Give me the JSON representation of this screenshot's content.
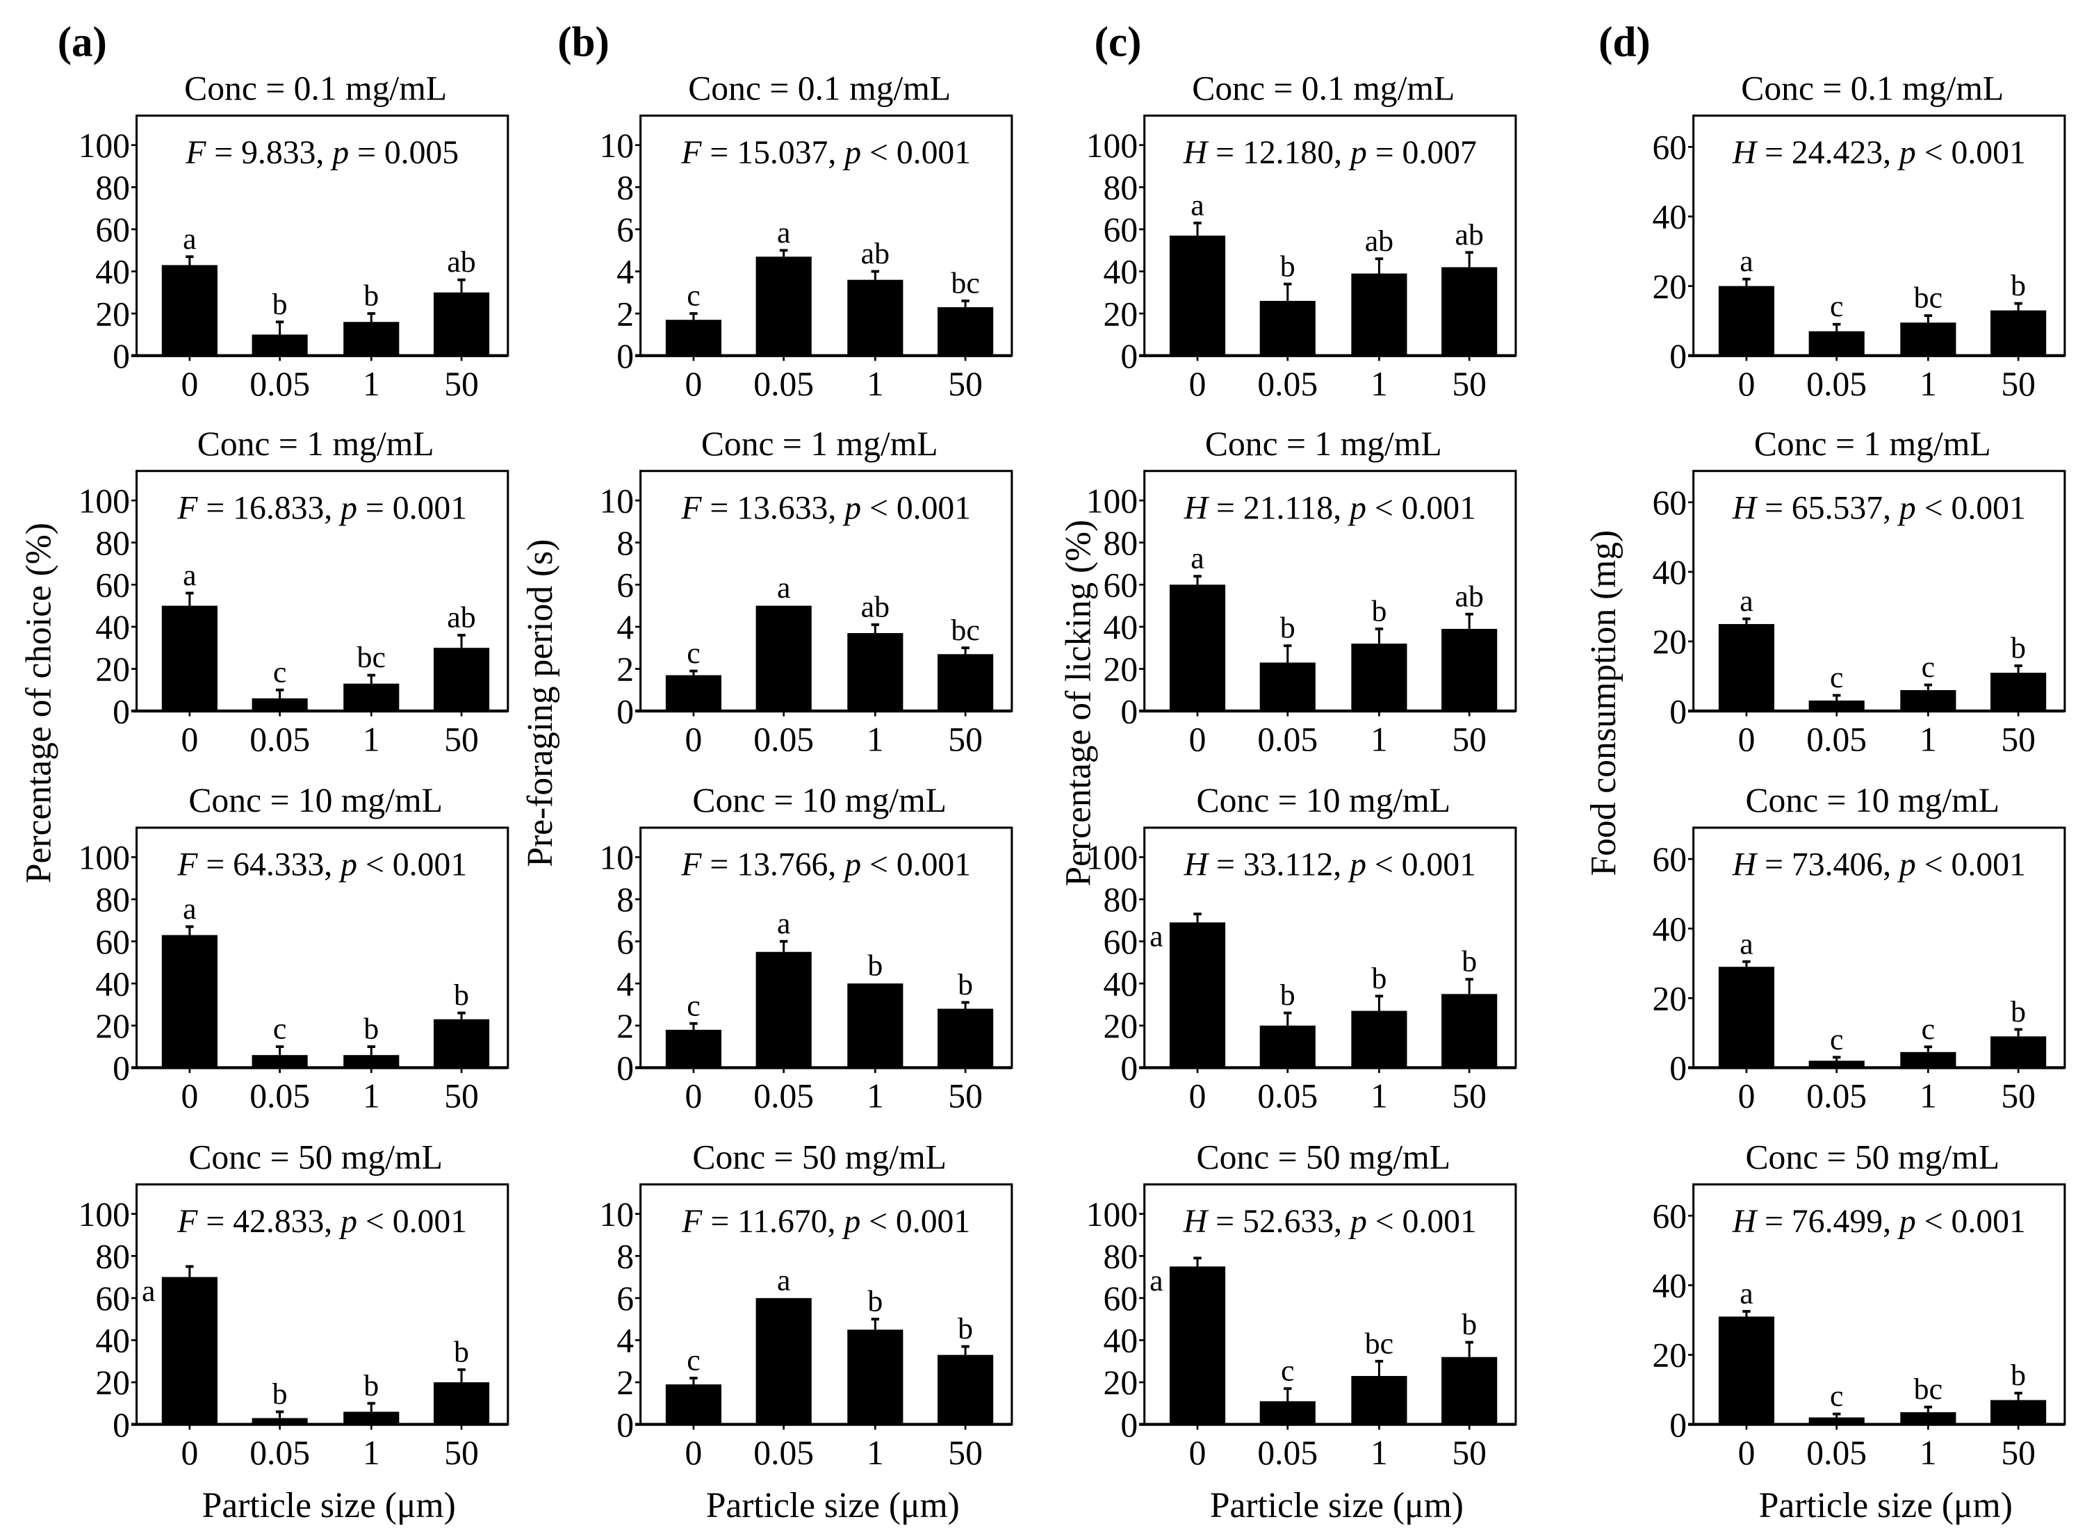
{
  "chart_data": [
    {
      "type": "bar",
      "panel_label": "(a)",
      "ylabel": "Percentage of choice (%)",
      "xlabel": "Particle size (μm)",
      "ylim": [
        0,
        114
      ],
      "yticks": [
        "0",
        "20",
        "40",
        "60",
        "80",
        "100"
      ],
      "ytick_values": [
        0,
        20,
        40,
        60,
        80,
        100
      ],
      "categories": [
        "0",
        "0.05",
        "1",
        "50"
      ],
      "subplots": [
        {
          "title": "Conc = 0.1 mg/mL",
          "stat": {
            "test": "F",
            "value": " = 9.833, ",
            "p": "p",
            "p_text": " = 0.005"
          },
          "values": [
            43,
            10,
            16,
            30
          ],
          "errors": [
            4,
            6,
            4,
            6
          ],
          "letters": [
            "a",
            "b",
            "b",
            "ab"
          ]
        },
        {
          "title": "Conc = 1 mg/mL",
          "stat": {
            "test": "F",
            "value": " = 16.833, ",
            "p": "p",
            "p_text": " = 0.001"
          },
          "values": [
            50,
            6,
            13,
            30
          ],
          "errors": [
            6,
            4,
            4,
            6
          ],
          "letters": [
            "a",
            "c",
            "bc",
            "ab"
          ]
        },
        {
          "title": "Conc = 10 mg/mL",
          "stat": {
            "test": "F",
            "value": " = 64.333, ",
            "p": "p",
            "p_text": " < 0.001"
          },
          "values": [
            63,
            6,
            6,
            23
          ],
          "errors": [
            4,
            4,
            4,
            3
          ],
          "letters": [
            "a",
            "c",
            "b",
            "b"
          ]
        },
        {
          "title": "Conc = 50 mg/mL",
          "stat": {
            "test": "F",
            "value": " = 42.833, ",
            "p": "p",
            "p_text": " < 0.001"
          },
          "values": [
            70,
            3,
            6,
            20
          ],
          "errors": [
            5,
            3,
            4,
            6
          ],
          "letters": [
            "a",
            "b",
            "b",
            "b"
          ]
        }
      ]
    },
    {
      "type": "bar",
      "panel_label": "(b)",
      "ylabel": "Pre-foraging period (s)",
      "xlabel": "Particle size (μm)",
      "ylim": [
        0,
        11.4
      ],
      "yticks": [
        "0",
        "2",
        "4",
        "6",
        "8",
        "10"
      ],
      "ytick_values": [
        0,
        2,
        4,
        6,
        8,
        10
      ],
      "categories": [
        "0",
        "0.05",
        "1",
        "50"
      ],
      "subplots": [
        {
          "title": "Conc = 0.1 mg/mL",
          "stat": {
            "test": "F",
            "value": " = 15.037, ",
            "p": "p",
            "p_text": " < 0.001"
          },
          "values": [
            1.7,
            4.7,
            3.6,
            2.3
          ],
          "errors": [
            0.3,
            0.3,
            0.4,
            0.3
          ],
          "letters": [
            "c",
            "a",
            "ab",
            "bc"
          ]
        },
        {
          "title": "Conc = 1 mg/mL",
          "stat": {
            "test": "F",
            "value": " = 13.633, ",
            "p": "p",
            "p_text": " < 0.001"
          },
          "values": [
            1.7,
            5.0,
            3.7,
            2.7
          ],
          "errors": [
            0.2,
            0.0,
            0.4,
            0.3
          ],
          "letters": [
            "c",
            "a",
            "ab",
            "bc"
          ]
        },
        {
          "title": "Conc = 10 mg/mL",
          "stat": {
            "test": "F",
            "value": " = 13.766, ",
            "p": "p",
            "p_text": " < 0.001"
          },
          "values": [
            1.8,
            5.5,
            4.0,
            2.8
          ],
          "errors": [
            0.3,
            0.5,
            0.0,
            0.3
          ],
          "letters": [
            "c",
            "a",
            "b",
            "b"
          ]
        },
        {
          "title": "Conc = 50 mg/mL",
          "stat": {
            "test": "F",
            "value": " = 11.670, ",
            "p": "p",
            "p_text": " < 0.001"
          },
          "values": [
            1.9,
            6.0,
            4.5,
            3.3
          ],
          "errors": [
            0.3,
            0.0,
            0.5,
            0.4
          ],
          "letters": [
            "c",
            "a",
            "b",
            "b"
          ]
        }
      ]
    },
    {
      "type": "bar",
      "panel_label": "(c)",
      "ylabel": "Percentage of licking (%)",
      "xlabel": "Particle size (μm)",
      "ylim": [
        0,
        114
      ],
      "yticks": [
        "0",
        "20",
        "40",
        "60",
        "80",
        "100"
      ],
      "ytick_values": [
        0,
        20,
        40,
        60,
        80,
        100
      ],
      "categories": [
        "0",
        "0.05",
        "1",
        "50"
      ],
      "subplots": [
        {
          "title": "Conc = 0.1 mg/mL",
          "stat": {
            "test": "H",
            "value": " = 12.180, ",
            "p": "p",
            "p_text": " = 0.007"
          },
          "values": [
            57,
            26,
            39,
            42
          ],
          "errors": [
            6,
            8,
            7,
            7
          ],
          "letters": [
            "a",
            "b",
            "ab",
            "ab"
          ]
        },
        {
          "title": "Conc = 1 mg/mL",
          "stat": {
            "test": "H",
            "value": " = 21.118, ",
            "p": "p",
            "p_text": " < 0.001"
          },
          "values": [
            60,
            23,
            32,
            39
          ],
          "errors": [
            4,
            8,
            7,
            7
          ],
          "letters": [
            "a",
            "b",
            "b",
            "ab"
          ]
        },
        {
          "title": "Conc = 10 mg/mL",
          "stat": {
            "test": "H",
            "value": " = 33.112, ",
            "p": "p",
            "p_text": " < 0.001"
          },
          "values": [
            69,
            20,
            27,
            35
          ],
          "errors": [
            4,
            6,
            7,
            7
          ],
          "letters": [
            "a",
            "b",
            "b",
            "b"
          ]
        },
        {
          "title": "Conc = 50 mg/mL",
          "stat": {
            "test": "H",
            "value": " = 52.633, ",
            "p": "p",
            "p_text": " < 0.001"
          },
          "values": [
            75,
            11,
            23,
            32
          ],
          "errors": [
            4,
            6,
            7,
            7
          ],
          "letters": [
            "a",
            "c",
            "bc",
            "b"
          ]
        }
      ]
    },
    {
      "type": "bar",
      "panel_label": "(d)",
      "ylabel": "Food consumption (mg)",
      "xlabel": "Particle size (μm)",
      "ylim": [
        0,
        69
      ],
      "yticks": [
        "0",
        "20",
        "40",
        "60"
      ],
      "ytick_values": [
        0,
        20,
        40,
        60
      ],
      "categories": [
        "0",
        "0.05",
        "1",
        "50"
      ],
      "subplots": [
        {
          "title": "Conc = 0.1 mg/mL",
          "stat": {
            "test": "H",
            "value": " = 24.423, ",
            "p": "p",
            "p_text": " < 0.001"
          },
          "values": [
            20,
            7,
            9.5,
            13
          ],
          "errors": [
            2,
            2,
            2,
            2
          ],
          "letters": [
            "a",
            "c",
            "bc",
            "b"
          ]
        },
        {
          "title": "Conc = 1 mg/mL",
          "stat": {
            "test": "H",
            "value": " = 65.537, ",
            "p": "p",
            "p_text": " < 0.001"
          },
          "values": [
            25,
            3,
            6,
            11
          ],
          "errors": [
            1.5,
            1.5,
            1.5,
            2
          ],
          "letters": [
            "a",
            "c",
            "c",
            "b"
          ]
        },
        {
          "title": "Conc = 10 mg/mL",
          "stat": {
            "test": "H",
            "value": " = 73.406, ",
            "p": "p",
            "p_text": " < 0.001"
          },
          "values": [
            29,
            2,
            4.5,
            9
          ],
          "errors": [
            1.5,
            1,
            1.5,
            2
          ],
          "letters": [
            "a",
            "c",
            "c",
            "b"
          ]
        },
        {
          "title": "Conc = 50 mg/mL",
          "stat": {
            "test": "H",
            "value": " = 76.499, ",
            "p": "p",
            "p_text": " < 0.001"
          },
          "values": [
            31,
            2,
            3.5,
            7
          ],
          "errors": [
            1.5,
            1,
            1.5,
            2
          ],
          "letters": [
            "a",
            "c",
            "bc",
            "b"
          ]
        }
      ]
    }
  ]
}
